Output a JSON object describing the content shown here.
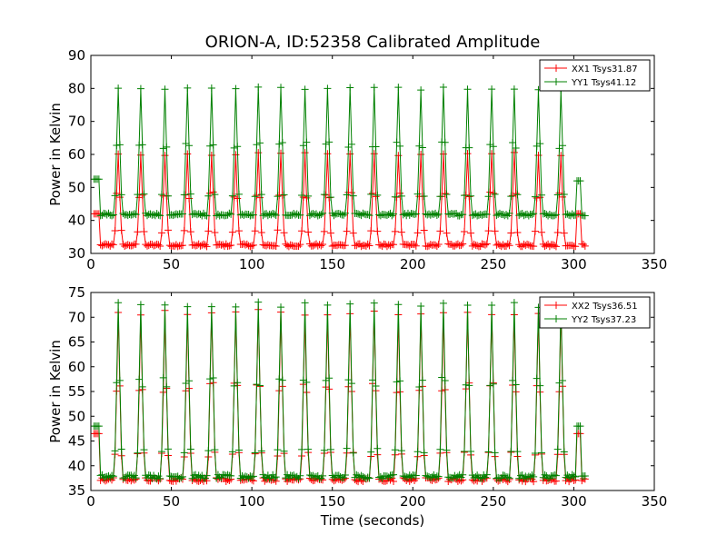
{
  "chart_data": [
    {
      "type": "line",
      "title": "ORION-A, ID:52358 Calibrated Amplitude",
      "xlabel": "",
      "ylabel": "Power in Kelvin",
      "xlim": [
        0,
        350
      ],
      "ylim": [
        30,
        90
      ],
      "xticks": [
        "0",
        "50",
        "100",
        "150",
        "200",
        "250",
        "300",
        "350"
      ],
      "yticks": [
        "30",
        "40",
        "50",
        "60",
        "70",
        "80",
        "90"
      ],
      "legend_position": "top-right",
      "grid": false,
      "x_range_of_data": [
        2,
        307
      ],
      "peak_times": [
        17,
        31,
        46,
        60,
        75,
        90,
        104,
        118,
        133,
        147,
        161,
        176,
        191,
        205,
        219,
        234,
        249,
        263,
        278,
        292
      ],
      "series": [
        {
          "name": "XX1 Tsys31.87",
          "color": "#ff0000",
          "baseline": 32.5,
          "peak_value": 60,
          "start_value": 42,
          "end_value": 32,
          "end_bump_time": 303,
          "end_bump_value": 42
        },
        {
          "name": "YY1 Tsys41.12",
          "color": "#008000",
          "baseline": 41.8,
          "peak_value": 80,
          "start_value": 52.5,
          "end_value": 41.5,
          "end_bump_time": 303,
          "end_bump_value": 52
        }
      ]
    },
    {
      "type": "line",
      "title": "",
      "xlabel": "Time (seconds)",
      "ylabel": "Power in Kelvin",
      "xlim": [
        0,
        350
      ],
      "ylim": [
        35,
        75
      ],
      "xticks": [
        "0",
        "50",
        "100",
        "150",
        "200",
        "250",
        "300",
        "350"
      ],
      "yticks": [
        "35",
        "40",
        "45",
        "50",
        "55",
        "60",
        "65",
        "70",
        "75"
      ],
      "legend_position": "top-right",
      "grid": false,
      "x_range_of_data": [
        2,
        307
      ],
      "peak_times": [
        17,
        31,
        46,
        60,
        75,
        90,
        104,
        118,
        133,
        147,
        161,
        176,
        191,
        205,
        219,
        234,
        249,
        263,
        278,
        292
      ],
      "series": [
        {
          "name": "XX2 Tsys36.51",
          "color": "#ff0000",
          "baseline": 37.2,
          "peak_value": 71,
          "start_value": 46.5,
          "end_value": 37.2,
          "end_bump_time": 303,
          "end_bump_value": 46.5
        },
        {
          "name": "YY2 Tsys37.23",
          "color": "#008000",
          "baseline": 37.8,
          "peak_value": 72.5,
          "start_value": 48,
          "end_value": 37.8,
          "end_bump_time": 303,
          "end_bump_value": 48
        }
      ]
    }
  ]
}
